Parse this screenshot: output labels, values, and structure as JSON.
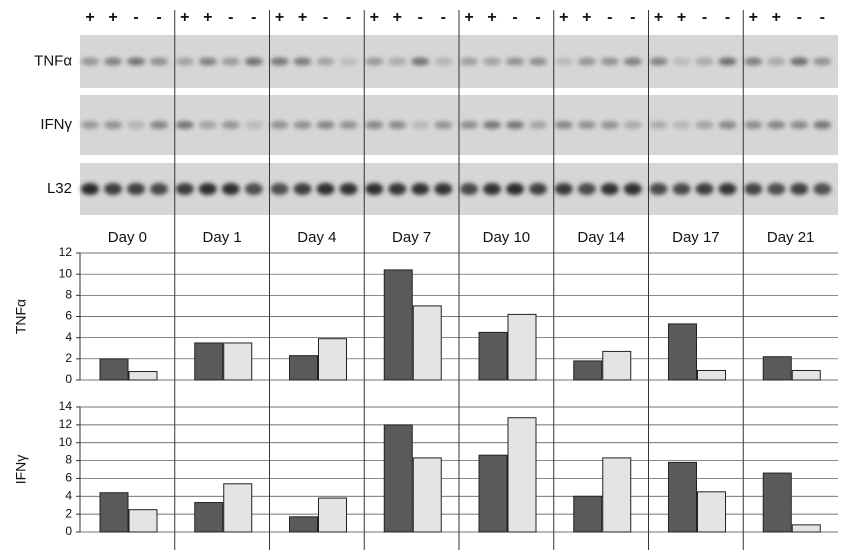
{
  "blot": {
    "rows": [
      "TNFα",
      "IFNγ",
      "L32"
    ],
    "lanes": [
      "+",
      "+",
      "-",
      "-"
    ]
  },
  "chart_data": [
    {
      "type": "bar",
      "ylabel": "TNFα",
      "categories": [
        "Day 0",
        "Day 1",
        "Day 4",
        "Day 7",
        "Day 10",
        "Day 14",
        "Day 17",
        "Day 21"
      ],
      "series": [
        {
          "color": "#5a5a5a",
          "values": [
            2.0,
            3.5,
            2.3,
            10.4,
            4.5,
            1.8,
            5.3,
            2.2
          ]
        },
        {
          "color": "#e4e4e4",
          "values": [
            0.8,
            3.5,
            3.9,
            7.0,
            6.2,
            2.7,
            0.9,
            0.9
          ]
        }
      ],
      "ylim": [
        0,
        12
      ],
      "yticks": [
        0,
        2,
        4,
        6,
        8,
        10,
        12
      ],
      "grid": true
    },
    {
      "type": "bar",
      "ylabel": "IFNγ",
      "series": [
        {
          "color": "#5a5a5a",
          "values": [
            4.4,
            3.3,
            1.7,
            12.0,
            8.6,
            4.0,
            7.8,
            6.6
          ]
        },
        {
          "color": "#e4e4e4",
          "values": [
            2.5,
            5.4,
            3.8,
            8.3,
            12.8,
            8.3,
            4.5,
            0.8
          ]
        }
      ],
      "ylim": [
        0,
        14
      ],
      "yticks": [
        0,
        2,
        4,
        6,
        8,
        10,
        12,
        14
      ],
      "grid": true
    }
  ]
}
